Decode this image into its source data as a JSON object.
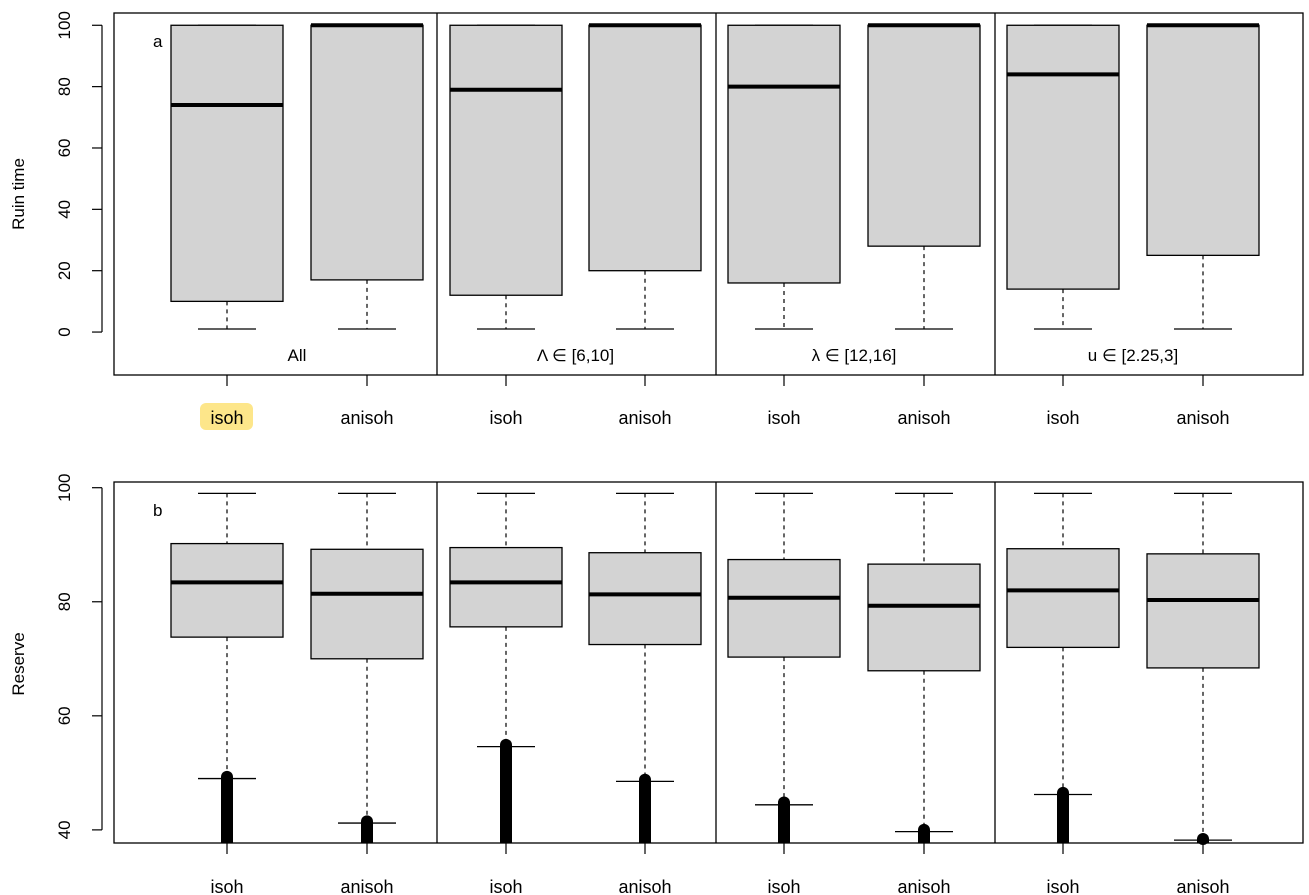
{
  "colors": {
    "box_fill": "#d3d3d3",
    "ink": "#000000",
    "highlight": "#fde68a"
  },
  "chart_data": [
    {
      "type": "boxplot",
      "panel_letter": "a",
      "ylabel": "Ruin time",
      "ylim": [
        -14,
        104
      ],
      "yticks": [
        0,
        20,
        40,
        60,
        80,
        100
      ],
      "grid": false,
      "categories": [
        "isoh",
        "anisoh",
        "isoh",
        "anisoh",
        "isoh",
        "anisoh",
        "isoh",
        "anisoh"
      ],
      "group_labels": [
        "All",
        "Λ ∈ [6,10]",
        "λ ∈ [12,16]",
        "u ∈ [2.25,3]"
      ],
      "highlighted_category_index": 0,
      "boxes": [
        {
          "whisker_low": 1,
          "q1": 10,
          "median": 74,
          "q3": 100,
          "whisker_high": 100,
          "outliers_top": 0
        },
        {
          "whisker_low": 1,
          "q1": 17,
          "median": 100,
          "q3": 100,
          "whisker_high": 100,
          "outliers_top": 0
        },
        {
          "whisker_low": 1,
          "q1": 12,
          "median": 79,
          "q3": 100,
          "whisker_high": 100,
          "outliers_top": 0
        },
        {
          "whisker_low": 1,
          "q1": 20,
          "median": 100,
          "q3": 100,
          "whisker_high": 100,
          "outliers_top": 0
        },
        {
          "whisker_low": 1,
          "q1": 16,
          "median": 80,
          "q3": 100,
          "whisker_high": 100,
          "outliers_top": 0
        },
        {
          "whisker_low": 1,
          "q1": 28,
          "median": 100,
          "q3": 100,
          "whisker_high": 100,
          "outliers_top": 0
        },
        {
          "whisker_low": 1,
          "q1": 14,
          "median": 84,
          "q3": 100,
          "whisker_high": 100,
          "outliers_top": 0
        },
        {
          "whisker_low": 1,
          "q1": 25,
          "median": 100,
          "q3": 100,
          "whisker_high": 100,
          "outliers_top": 0
        }
      ]
    },
    {
      "type": "boxplot",
      "panel_letter": "b",
      "ylabel": "Reserve",
      "ylim": [
        37.7,
        101
      ],
      "yticks": [
        40,
        60,
        80,
        100
      ],
      "grid": false,
      "categories": [
        "isoh",
        "anisoh",
        "isoh",
        "anisoh",
        "isoh",
        "anisoh",
        "isoh",
        "anisoh"
      ],
      "group_labels": [],
      "boxes": [
        {
          "whisker_low": 49,
          "q1": 73.8,
          "median": 83.4,
          "q3": 90.2,
          "whisker_high": 99,
          "outliers_top": 49.3
        },
        {
          "whisker_low": 41.2,
          "q1": 70,
          "median": 81.4,
          "q3": 89.2,
          "whisker_high": 99,
          "outliers_top": 41.5
        },
        {
          "whisker_low": 54.6,
          "q1": 75.6,
          "median": 83.4,
          "q3": 89.5,
          "whisker_high": 99,
          "outliers_top": 54.9
        },
        {
          "whisker_low": 48.5,
          "q1": 72.5,
          "median": 81.3,
          "q3": 88.6,
          "whisker_high": 99,
          "outliers_top": 48.8
        },
        {
          "whisker_low": 44.4,
          "q1": 70.3,
          "median": 80.7,
          "q3": 87.4,
          "whisker_high": 99,
          "outliers_top": 44.8
        },
        {
          "whisker_low": 39.7,
          "q1": 67.9,
          "median": 79.3,
          "q3": 86.6,
          "whisker_high": 99,
          "outliers_top": 40
        },
        {
          "whisker_low": 46.2,
          "q1": 72,
          "median": 82,
          "q3": 89.3,
          "whisker_high": 99,
          "outliers_top": 46.5
        },
        {
          "whisker_low": 38.2,
          "q1": 68.4,
          "median": 80.3,
          "q3": 88.4,
          "whisker_high": 99,
          "outliers_top": 38.4
        }
      ]
    }
  ]
}
